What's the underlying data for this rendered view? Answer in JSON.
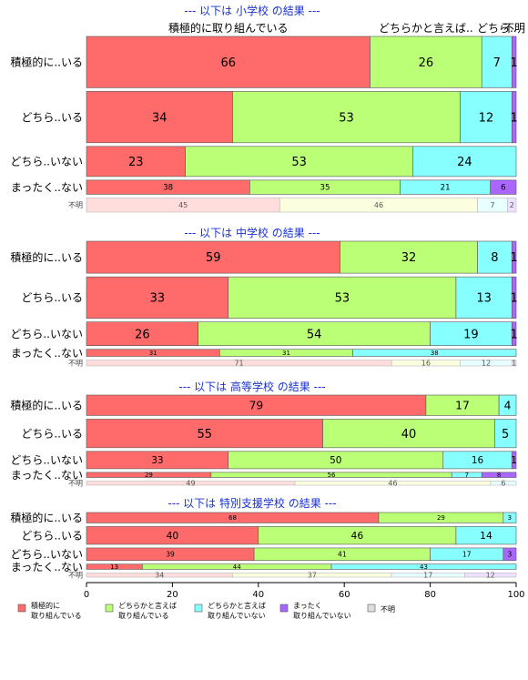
{
  "colors": {
    "c0": "#ff6b6b",
    "c1": "#bbff77",
    "c2": "#88ffff",
    "c3": "#aa66ff",
    "c4": "#dddddd",
    "title": "#1a33cc",
    "na_fill": [
      "#ffdddd",
      "#fbffe0",
      "#e8ffff",
      "#eee0ff"
    ]
  },
  "chart_data": {
    "type": "bar",
    "orientation": "horizontal",
    "stacked": true,
    "normalized_width": true,
    "xlim": [
      0,
      100
    ],
    "x_ticks": [
      "0",
      "20",
      "40",
      "60",
      "80",
      "100"
    ],
    "legend": {
      "placement": "bottom",
      "items": [
        {
          "lines": [
            "積極的に",
            "取り組んでいる"
          ],
          "color": "c0"
        },
        {
          "lines": [
            "どちらかと言えば",
            "取り組んでいる"
          ],
          "color": "c1"
        },
        {
          "lines": [
            "どちらかと言えば",
            "取り組んでいない"
          ],
          "color": "c2"
        },
        {
          "lines": [
            "まったく",
            "取り組んでいない"
          ],
          "color": "c3"
        },
        {
          "lines": [
            "不明"
          ],
          "color": "c4"
        }
      ]
    },
    "panels": [
      {
        "title": "--- 以下は 小学校 の結果 ---",
        "col_labels": [
          "積極的に取り組んでいる",
          "どちらかと言えば..",
          "どちら..",
          "不明"
        ],
        "rows": [
          {
            "label": "積極的に..いる",
            "weight": 2.9,
            "values": [
              66,
              26,
              7,
              1
            ]
          },
          {
            "label": "どちら..いる",
            "weight": 2.9,
            "values": [
              34,
              53,
              12,
              1
            ]
          },
          {
            "label": "どちら..いない",
            "weight": 1.7,
            "values": [
              23,
              53,
              24,
              0
            ]
          },
          {
            "label": "まったく..ない",
            "weight": 0.8,
            "values": [
              38,
              35,
              21,
              6
            ]
          },
          {
            "label": "不明",
            "weight": 0.8,
            "na": true,
            "values": [
              45,
              46,
              7,
              2
            ]
          }
        ]
      },
      {
        "title": "--- 以下は 中学校 の結果 ---",
        "rows": [
          {
            "label": "積極的に..いる",
            "weight": 2.7,
            "values": [
              59,
              32,
              8,
              1
            ]
          },
          {
            "label": "どちら..いる",
            "weight": 3.5,
            "values": [
              33,
              53,
              13,
              1
            ]
          },
          {
            "label": "どちら..いない",
            "weight": 2.0,
            "values": [
              26,
              54,
              19,
              1
            ]
          },
          {
            "label": "まったく..ない",
            "weight": 0.6,
            "values": [
              31,
              31,
              38,
              0
            ]
          },
          {
            "label": "不明",
            "weight": 0.5,
            "na": true,
            "values": [
              71,
              16,
              12,
              1
            ]
          }
        ]
      },
      {
        "title": "--- 以下は 高等学校 の結果 ---",
        "rows": [
          {
            "label": "積極的に..いる",
            "weight": 2.0,
            "values": [
              79,
              17,
              4,
              0
            ]
          },
          {
            "label": "どちら..いる",
            "weight": 2.8,
            "values": [
              55,
              40,
              5,
              0
            ]
          },
          {
            "label": "どちら..いない",
            "weight": 1.7,
            "values": [
              33,
              50,
              16,
              1
            ]
          },
          {
            "label": "まったく..ない",
            "weight": 0.5,
            "values": [
              29,
              56,
              7,
              8
            ]
          },
          {
            "label": "不明",
            "weight": 0.4,
            "na": true,
            "values": [
              49,
              46,
              6,
              0
            ]
          }
        ]
      },
      {
        "title": "--- 以下は 特別支援学校 の結果 ---",
        "rows": [
          {
            "label": "積極的に..いる",
            "weight": 1.0,
            "values": [
              68,
              29,
              3,
              0
            ]
          },
          {
            "label": "どちら..いる",
            "weight": 1.7,
            "values": [
              40,
              46,
              14,
              0
            ]
          },
          {
            "label": "どちら..いない",
            "weight": 1.2,
            "values": [
              39,
              41,
              17,
              3
            ]
          },
          {
            "label": "まったく..ない",
            "weight": 0.5,
            "values": [
              13,
              44,
              43,
              0
            ]
          },
          {
            "label": "不明",
            "weight": 0.4,
            "na": true,
            "values": [
              34,
              37,
              17,
              12
            ]
          }
        ]
      }
    ]
  }
}
